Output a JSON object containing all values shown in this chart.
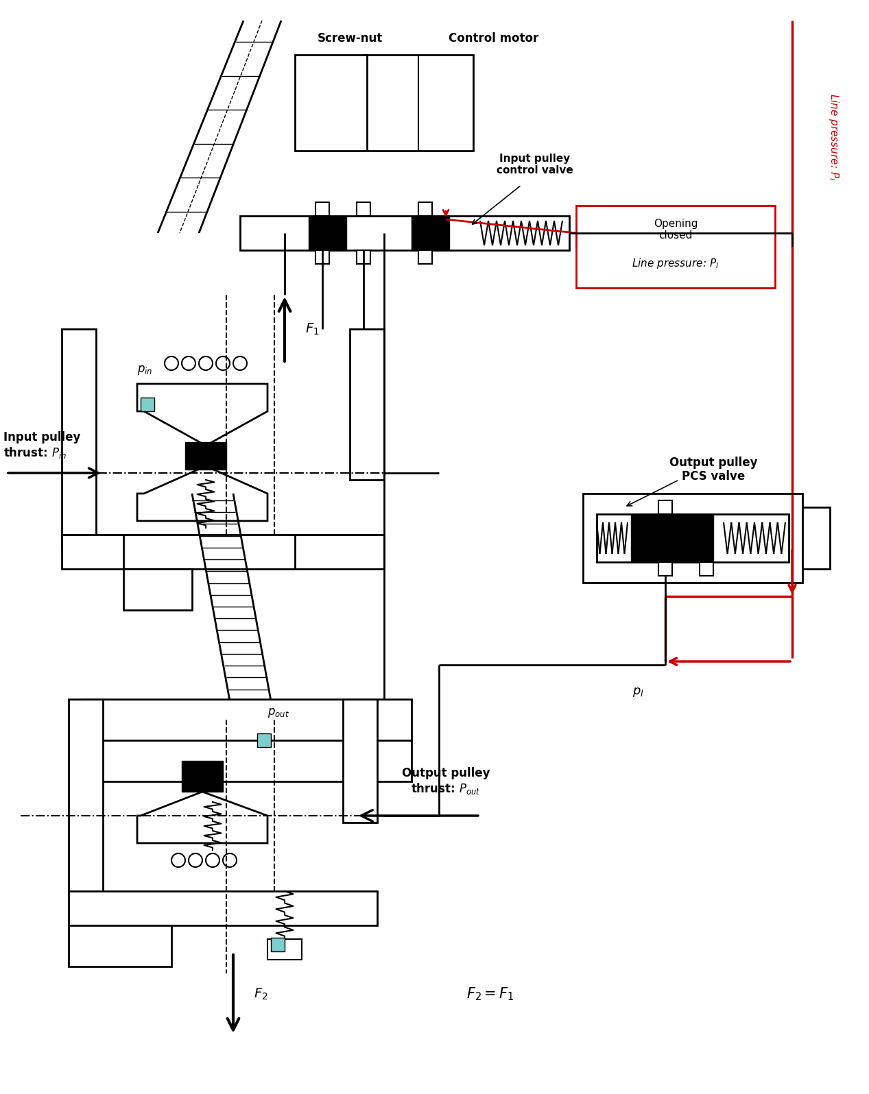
{
  "title": "",
  "bg_color": "#ffffff",
  "line_color": "#000000",
  "red_color": "#cc0000",
  "fill_black": "#000000",
  "fill_cyan": "#7ecece",
  "labels": {
    "screw_nut": "Screw-nut",
    "control_motor": "Control motor",
    "input_pulley_valve": "Input pulley\ncontrol valve",
    "opening_closed": "Opening\nclosed",
    "line_pressure_top": "Line pressure: $P_l$",
    "line_pressure_box": "Line pressure: $P_l$",
    "output_pcs_valve": "Output pulley\nPCS valve",
    "p_l": "$p_l$",
    "input_pulley_thrust": "Input pulley\nthrust: $P_{in}$",
    "p_in": "$p_{in}$",
    "F1": "$F_1$",
    "output_pulley_thrust": "Output pulley\nthrust: $P_{out}$",
    "p_out": "$p_{out}$",
    "F2": "$F_2$",
    "F2_eq_F1": "$F_2 = F_1$"
  }
}
